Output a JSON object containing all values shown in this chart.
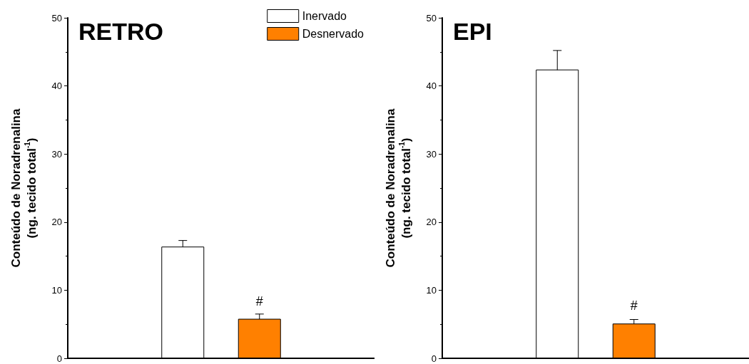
{
  "chart_data": [
    {
      "type": "bar",
      "title": "RETRO",
      "ylabel": "Conteúdo de Noradrenalina\n(ng. tecido total$^{-1}$)",
      "categories": [
        null,
        null,
        null,
        null
      ],
      "series": [
        {
          "name": "Inervado",
          "color": "#ffffff",
          "values": [
            null,
            16.4,
            null,
            null
          ],
          "errors": [
            null,
            0.9,
            null,
            null
          ]
        },
        {
          "name": "Desnervado",
          "color": "#ff8000",
          "values": [
            null,
            null,
            5.8,
            null
          ],
          "errors": [
            null,
            null,
            0.7,
            null
          ],
          "value_labels": [
            null,
            null,
            "#",
            null
          ]
        }
      ],
      "ylim": [
        0,
        50
      ],
      "yticks": [
        0,
        10,
        20,
        30,
        40,
        50
      ],
      "legend": "top right"
    },
    {
      "type": "bar",
      "title": "EPI",
      "ylabel": "Conteúdo de Noradrenalina\n(ng. tecido total$^{-1}$)",
      "categories": [
        null,
        null,
        null,
        null
      ],
      "series": [
        {
          "color": "#ffffff",
          "values": [
            null,
            42.4,
            null,
            null
          ],
          "errors": [
            null,
            2.8,
            null,
            null
          ]
        },
        {
          "color": "#ff8000",
          "values": [
            null,
            null,
            5.1,
            null
          ],
          "errors": [
            null,
            null,
            0.6,
            null
          ],
          "value_labels": [
            null,
            null,
            "#",
            null
          ]
        }
      ],
      "ylim": [
        0,
        50
      ],
      "yticks": [
        0,
        10,
        20,
        30,
        40,
        50
      ]
    }
  ]
}
